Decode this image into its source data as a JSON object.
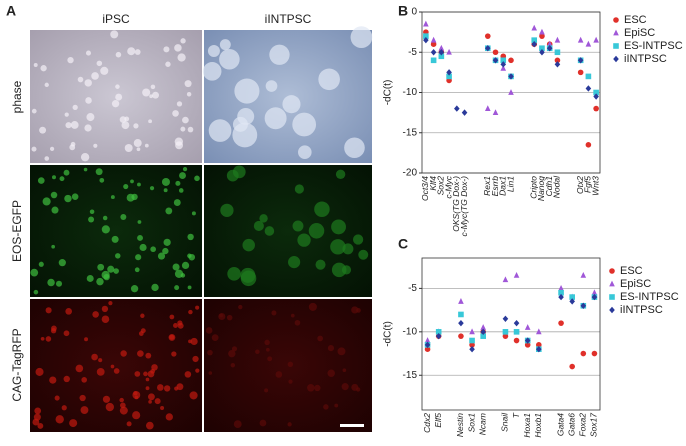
{
  "figure_a": {
    "label": "A",
    "columns": [
      "iPSC",
      "iINTPSC"
    ],
    "rows": [
      "phase",
      "EOS-EGFP",
      "CAG-TagRFP"
    ]
  },
  "chart_data": [
    {
      "type": "scatter",
      "label": "B",
      "ylabel": "-dC(t)",
      "categories": [
        "Oct3/4",
        "Klf4",
        "Sox2",
        "c-Myc",
        "OKS(TG Dox-)",
        "c-Myc(TG Dox-)",
        null,
        null,
        "Rex1",
        "Esrrb",
        "Dax1",
        "Lin1",
        null,
        null,
        "Cripto",
        "Nanog",
        "Cdh1",
        "Nodal",
        null,
        null,
        "Otx2",
        "Fgf5",
        "Wnt3"
      ],
      "ylim": [
        0,
        -20
      ],
      "yticks": [
        0,
        -5,
        -10,
        -15,
        -20
      ],
      "grid": true,
      "legend": "right",
      "series": [
        {
          "name": "ESC",
          "color": "#e0302a",
          "marker": "circle",
          "values": [
            -2.5,
            -4,
            -5,
            -8.5,
            null,
            null,
            null,
            null,
            -3,
            -5,
            -5.5,
            -6,
            null,
            null,
            -4,
            -3,
            -4,
            -6,
            null,
            null,
            -7.5,
            -16.5,
            -12
          ]
        },
        {
          "name": "EpiSC",
          "color": "#a057d8",
          "marker": "triangle",
          "values": [
            -1.5,
            -3.5,
            -4.5,
            -5,
            null,
            null,
            null,
            null,
            -12,
            -12.5,
            -7,
            -10,
            null,
            null,
            -2,
            -2.5,
            -4,
            -3.5,
            null,
            null,
            -3.5,
            -4,
            -3.5
          ]
        },
        {
          "name": "ES-INTPSC",
          "color": "#38c8d8",
          "marker": "square",
          "values": [
            -3,
            -6,
            -5.5,
            -8,
            null,
            null,
            null,
            null,
            -4.5,
            -6,
            -6,
            -8,
            null,
            null,
            -3.5,
            -4.5,
            -4.5,
            -5,
            null,
            null,
            -6,
            -8,
            -10
          ]
        },
        {
          "name": "iINTPSC",
          "color": "#2a3a9a",
          "marker": "diamond",
          "values": [
            -3.5,
            -5,
            -5,
            -7.5,
            -12,
            -12.5,
            null,
            null,
            -4.5,
            -6,
            -6.5,
            -8,
            null,
            null,
            -4,
            -5,
            -4.5,
            -6.5,
            null,
            null,
            -6,
            -9.5,
            -10.5
          ]
        }
      ]
    },
    {
      "type": "scatter",
      "label": "C",
      "ylabel": "-dC(t)",
      "categories": [
        "Cdx2",
        "Elf5",
        null,
        "Nestin",
        "Sox1",
        "Ncam",
        null,
        "Snail",
        "T",
        "Hoxa1",
        "Hoxb1",
        null,
        "Gata4",
        "Gata6",
        "Foxa2",
        "Sox17"
      ],
      "ylim": [
        -1.5,
        -19
      ],
      "yticks": [
        -5,
        -10,
        -15
      ],
      "grid": true,
      "legend": "right",
      "series": [
        {
          "name": "ESC",
          "color": "#e0302a",
          "marker": "circle",
          "values": [
            -12,
            -10.5,
            null,
            -10.5,
            -11.5,
            -10,
            null,
            -10.5,
            -11,
            -11.5,
            -11.5,
            null,
            -9,
            -14,
            -12.5,
            -12.5
          ]
        },
        {
          "name": "EpiSC",
          "color": "#a057d8",
          "marker": "triangle",
          "values": [
            -11,
            -10,
            null,
            -6.5,
            -10,
            -9.5,
            null,
            -4,
            -3.5,
            -9.5,
            -10,
            null,
            -5,
            -6,
            -3.5,
            -5.5
          ]
        },
        {
          "name": "ES-INTPSC",
          "color": "#38c8d8",
          "marker": "square",
          "values": [
            -11.5,
            -10,
            null,
            -8,
            -11,
            -10.5,
            null,
            -10,
            -10,
            -11,
            -12,
            null,
            -5.5,
            -6,
            -7,
            -6
          ]
        },
        {
          "name": "iINTPSC",
          "color": "#2a3a9a",
          "marker": "diamond",
          "values": [
            -11.5,
            -10.5,
            null,
            -9,
            -12,
            -10,
            null,
            -8.5,
            -9,
            -11,
            -12,
            null,
            -6,
            -6.5,
            -7,
            -6
          ]
        }
      ]
    }
  ]
}
